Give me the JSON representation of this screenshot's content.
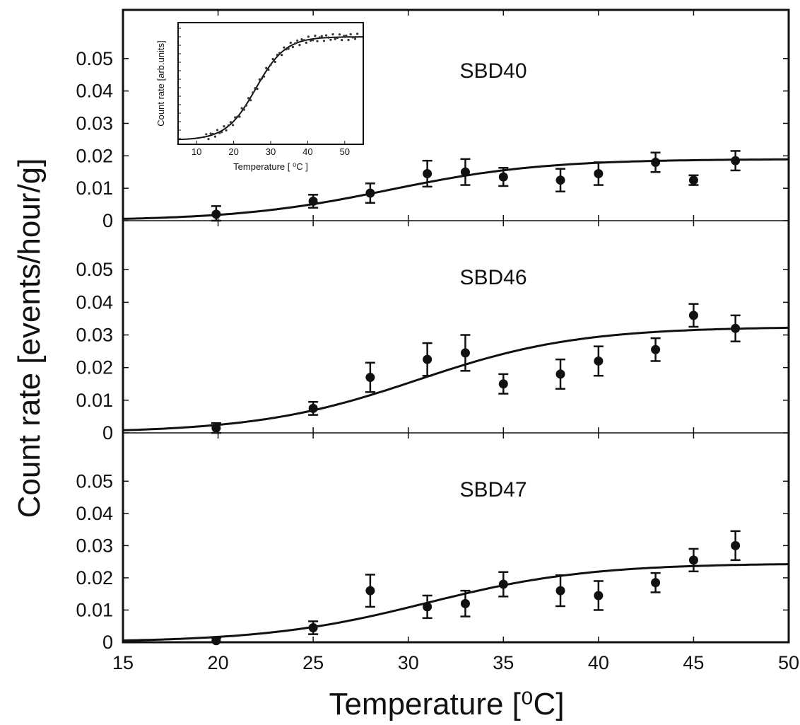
{
  "chart_data": {
    "type": "scatter",
    "xlabel": "Temperature [⁰C]",
    "ylabel": "Count rate [events/hour/g]",
    "xlim": [
      15,
      50
    ],
    "ylim": [
      0,
      0.065
    ],
    "x_ticks": [
      "15",
      "20",
      "25",
      "30",
      "35",
      "40",
      "45",
      "50"
    ],
    "y_ticks": [
      "0",
      "0.01",
      "0.02",
      "0.03",
      "0.04",
      "0.05"
    ],
    "grid": false,
    "panels": [
      {
        "label": "SBD40",
        "x": [
          19.9,
          25.0,
          28.0,
          31.0,
          33.0,
          35.0,
          38.0,
          40.0,
          43.0,
          45.0,
          47.2
        ],
        "y": [
          0.002,
          0.006,
          0.0085,
          0.0145,
          0.015,
          0.0135,
          0.0125,
          0.0145,
          0.018,
          0.0125,
          0.0185
        ],
        "err": [
          0.0025,
          0.002,
          0.003,
          0.004,
          0.004,
          0.0028,
          0.0035,
          0.0035,
          0.003,
          0.0015,
          0.003
        ],
        "fit": {
          "plateau": 0.019,
          "midpoint": 29.0,
          "width": 4.0
        }
      },
      {
        "label": "SBD46",
        "x": [
          19.9,
          25.0,
          28.0,
          31.0,
          33.0,
          35.0,
          38.0,
          40.0,
          43.0,
          45.0,
          47.2
        ],
        "y": [
          0.0015,
          0.0075,
          0.017,
          0.0225,
          0.0245,
          0.015,
          0.018,
          0.022,
          0.0255,
          0.036,
          0.032
        ],
        "err": [
          0.0015,
          0.002,
          0.0045,
          0.005,
          0.0055,
          0.003,
          0.0045,
          0.0045,
          0.0035,
          0.0035,
          0.004
        ],
        "fit": {
          "plateau": 0.0325,
          "midpoint": 30.5,
          "width": 4.2
        }
      },
      {
        "label": "SBD47",
        "x": [
          19.9,
          25.0,
          28.0,
          31.0,
          33.0,
          35.0,
          38.0,
          40.0,
          43.0,
          45.0,
          47.2
        ],
        "y": [
          0.0005,
          0.0045,
          0.016,
          0.011,
          0.012,
          0.018,
          0.016,
          0.0145,
          0.0185,
          0.0255,
          0.03
        ],
        "err": [
          0.0008,
          0.002,
          0.005,
          0.0035,
          0.004,
          0.0038,
          0.0048,
          0.0045,
          0.003,
          0.0035,
          0.0045
        ],
        "fit": {
          "plateau": 0.0245,
          "midpoint": 31.0,
          "width": 4.2
        }
      }
    ],
    "inset": {
      "xlabel": "Temperature [ ⁰C ]",
      "ylabel": "Count rate [arb.units]",
      "xlim": [
        5,
        55
      ],
      "x_ticks": [
        "10",
        "20",
        "30",
        "40",
        "50"
      ],
      "curve": {
        "midpoint": 26.0,
        "width": 4.0
      }
    }
  }
}
